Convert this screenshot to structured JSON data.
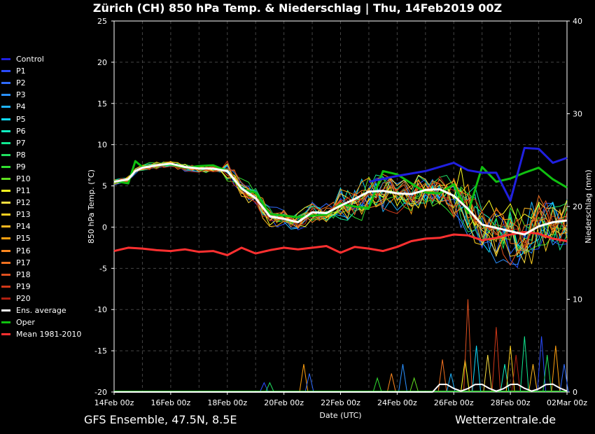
{
  "title": "Zürich  (CH)  850 hPa Temp. & Niederschlag | Thu, 14Feb2019 00Z",
  "footer_left": "GFS Ensemble, 47.5N, 8.5E",
  "footer_right": "Wetterzentrale.de",
  "chart_data": {
    "type": "line",
    "xlabel": "Date (UTC)",
    "ylabel": "850 hPa Temp. (°C)",
    "ylabel_right": "Niederschlag (mm)",
    "ylim": [
      -20,
      25
    ],
    "ylim_right": [
      0,
      40
    ],
    "y_ticks": [
      25,
      20,
      15,
      10,
      5,
      0,
      -5,
      -10,
      -15,
      -20
    ],
    "y_ticks_right": [
      40,
      30,
      20,
      10,
      0
    ],
    "x_tick_labels": [
      "14Feb 00z",
      "16Feb 00z",
      "18Feb 00z",
      "20Feb 00z",
      "22Feb 00z",
      "24Feb 00z",
      "26Feb 00z",
      "28Feb 00z",
      "02Mar 00z"
    ],
    "x_days": [
      0,
      16
    ],
    "grid": true,
    "legend_position": "left",
    "series": [
      {
        "name": "Control",
        "color": "#2020e0"
      },
      {
        "name": "P1",
        "color": "#2a4cff"
      },
      {
        "name": "P2",
        "color": "#2f6cff"
      },
      {
        "name": "P3",
        "color": "#2a90ff"
      },
      {
        "name": "P4",
        "color": "#20b4ff"
      },
      {
        "name": "P5",
        "color": "#10dcff"
      },
      {
        "name": "P6",
        "color": "#10f0c0"
      },
      {
        "name": "P7",
        "color": "#10e890"
      },
      {
        "name": "P8",
        "color": "#20e060"
      },
      {
        "name": "P9",
        "color": "#30e030"
      },
      {
        "name": "P10",
        "color": "#60e020"
      },
      {
        "name": "P11",
        "color": "#ffff20"
      },
      {
        "name": "P12",
        "color": "#ffe040"
      },
      {
        "name": "P13",
        "color": "#ffd020"
      },
      {
        "name": "P14",
        "color": "#ffb820"
      },
      {
        "name": "P15",
        "color": "#ffa010"
      },
      {
        "name": "P16",
        "color": "#ff8820"
      },
      {
        "name": "P17",
        "color": "#f07020"
      },
      {
        "name": "P18",
        "color": "#e05020"
      },
      {
        "name": "P19",
        "color": "#d03818"
      },
      {
        "name": "P20",
        "color": "#b02010"
      },
      {
        "name": "Ens. average",
        "color": "#ffffff"
      },
      {
        "name": "Oper",
        "color": "#10c010"
      },
      {
        "name": "Mean 1981-2010",
        "color": "#ff3030"
      }
    ],
    "highlight": {
      "ens_average": {
        "x": [
          0,
          0.5,
          0.75,
          1,
          1.5,
          2,
          2.5,
          3,
          3.5,
          4,
          4.5,
          5,
          5.5,
          6,
          6.5,
          7,
          7.5,
          8,
          8.5,
          9,
          9.5,
          10,
          10.5,
          11,
          11.5,
          12,
          12.5,
          13,
          13.5,
          14,
          14.5,
          15,
          15.5,
          16
        ],
        "y": [
          5.5,
          5.8,
          6.8,
          7.2,
          7.5,
          7.7,
          7.3,
          7.1,
          7.1,
          6.8,
          4.7,
          3.5,
          1.3,
          1.0,
          0.6,
          1.8,
          1.7,
          2.6,
          3.4,
          4.3,
          4.4,
          4.1,
          4.0,
          4.5,
          4.6,
          3.8,
          2.2,
          0.3,
          -0.1,
          -0.5,
          -0.9,
          0.1,
          0.6,
          0.8
        ]
      },
      "oper": {
        "x": [
          0,
          0.5,
          0.75,
          1,
          1.5,
          2,
          2.5,
          3,
          3.5,
          4,
          4.5,
          5,
          5.5,
          6,
          6.5,
          7,
          7.5,
          8,
          8.5,
          9,
          9.5,
          10,
          10.5,
          11,
          11.5,
          12,
          12.5,
          13,
          13.5,
          14,
          14.5,
          15,
          15.5,
          16
        ],
        "y": [
          5.6,
          5.3,
          8.0,
          7.3,
          7.5,
          7.6,
          7.2,
          7.4,
          7.5,
          6.8,
          4.6,
          4.2,
          1.6,
          1.4,
          1.2,
          1.4,
          1.5,
          2.8,
          2.5,
          2.3,
          6.8,
          6.4,
          5.3,
          4.2,
          4.1,
          5.2,
          1.7,
          7.3,
          5.5,
          5.9,
          6.6,
          7.2,
          5.8,
          4.8
        ]
      },
      "control": {
        "x": [
          9,
          10,
          11,
          12,
          12.5,
          13,
          13.5,
          14,
          14.5,
          15,
          15.5,
          16
        ],
        "y": [
          5.5,
          6.2,
          6.8,
          7.8,
          6.9,
          6.6,
          6.6,
          3.2,
          9.6,
          9.5,
          7.8,
          8.4
        ]
      },
      "climate_mean": {
        "x": [
          0,
          0.5,
          1,
          1.5,
          2,
          2.5,
          3,
          3.5,
          4,
          4.5,
          5,
          5.5,
          6,
          6.5,
          7,
          7.5,
          8,
          8.5,
          9,
          9.5,
          10,
          10.5,
          11,
          11.5,
          12,
          12.5,
          13,
          13.5,
          14,
          14.5,
          15,
          15.5,
          16
        ],
        "y": [
          -2.9,
          -2.5,
          -2.6,
          -2.8,
          -2.9,
          -2.7,
          -3.0,
          -2.9,
          -3.4,
          -2.5,
          -3.2,
          -2.8,
          -2.5,
          -2.7,
          -2.5,
          -2.3,
          -3.1,
          -2.4,
          -2.6,
          -2.9,
          -2.4,
          -1.7,
          -1.4,
          -1.3,
          -0.9,
          -1.0,
          -1.6,
          -1.3,
          -0.9,
          -0.6,
          -0.8,
          -1.4,
          -1.7
        ]
      }
    },
    "precip_spikes": [
      {
        "x": 5.3,
        "mm": 1
      },
      {
        "x": 5.5,
        "mm": 1
      },
      {
        "x": 6.7,
        "mm": 3
      },
      {
        "x": 6.9,
        "mm": 2
      },
      {
        "x": 9.3,
        "mm": 1.5
      },
      {
        "x": 9.8,
        "mm": 2
      },
      {
        "x": 10.2,
        "mm": 3
      },
      {
        "x": 10.6,
        "mm": 1.5
      },
      {
        "x": 11.6,
        "mm": 3.5
      },
      {
        "x": 11.9,
        "mm": 2
      },
      {
        "x": 12.4,
        "mm": 3.5
      },
      {
        "x": 12.5,
        "mm": 10
      },
      {
        "x": 12.8,
        "mm": 5
      },
      {
        "x": 13.2,
        "mm": 4
      },
      {
        "x": 13.5,
        "mm": 7
      },
      {
        "x": 13.8,
        "mm": 3
      },
      {
        "x": 14.0,
        "mm": 5
      },
      {
        "x": 14.2,
        "mm": 4
      },
      {
        "x": 14.5,
        "mm": 6
      },
      {
        "x": 14.8,
        "mm": 3
      },
      {
        "x": 15.1,
        "mm": 6
      },
      {
        "x": 15.3,
        "mm": 4
      },
      {
        "x": 15.6,
        "mm": 5
      },
      {
        "x": 15.9,
        "mm": 3
      }
    ]
  }
}
